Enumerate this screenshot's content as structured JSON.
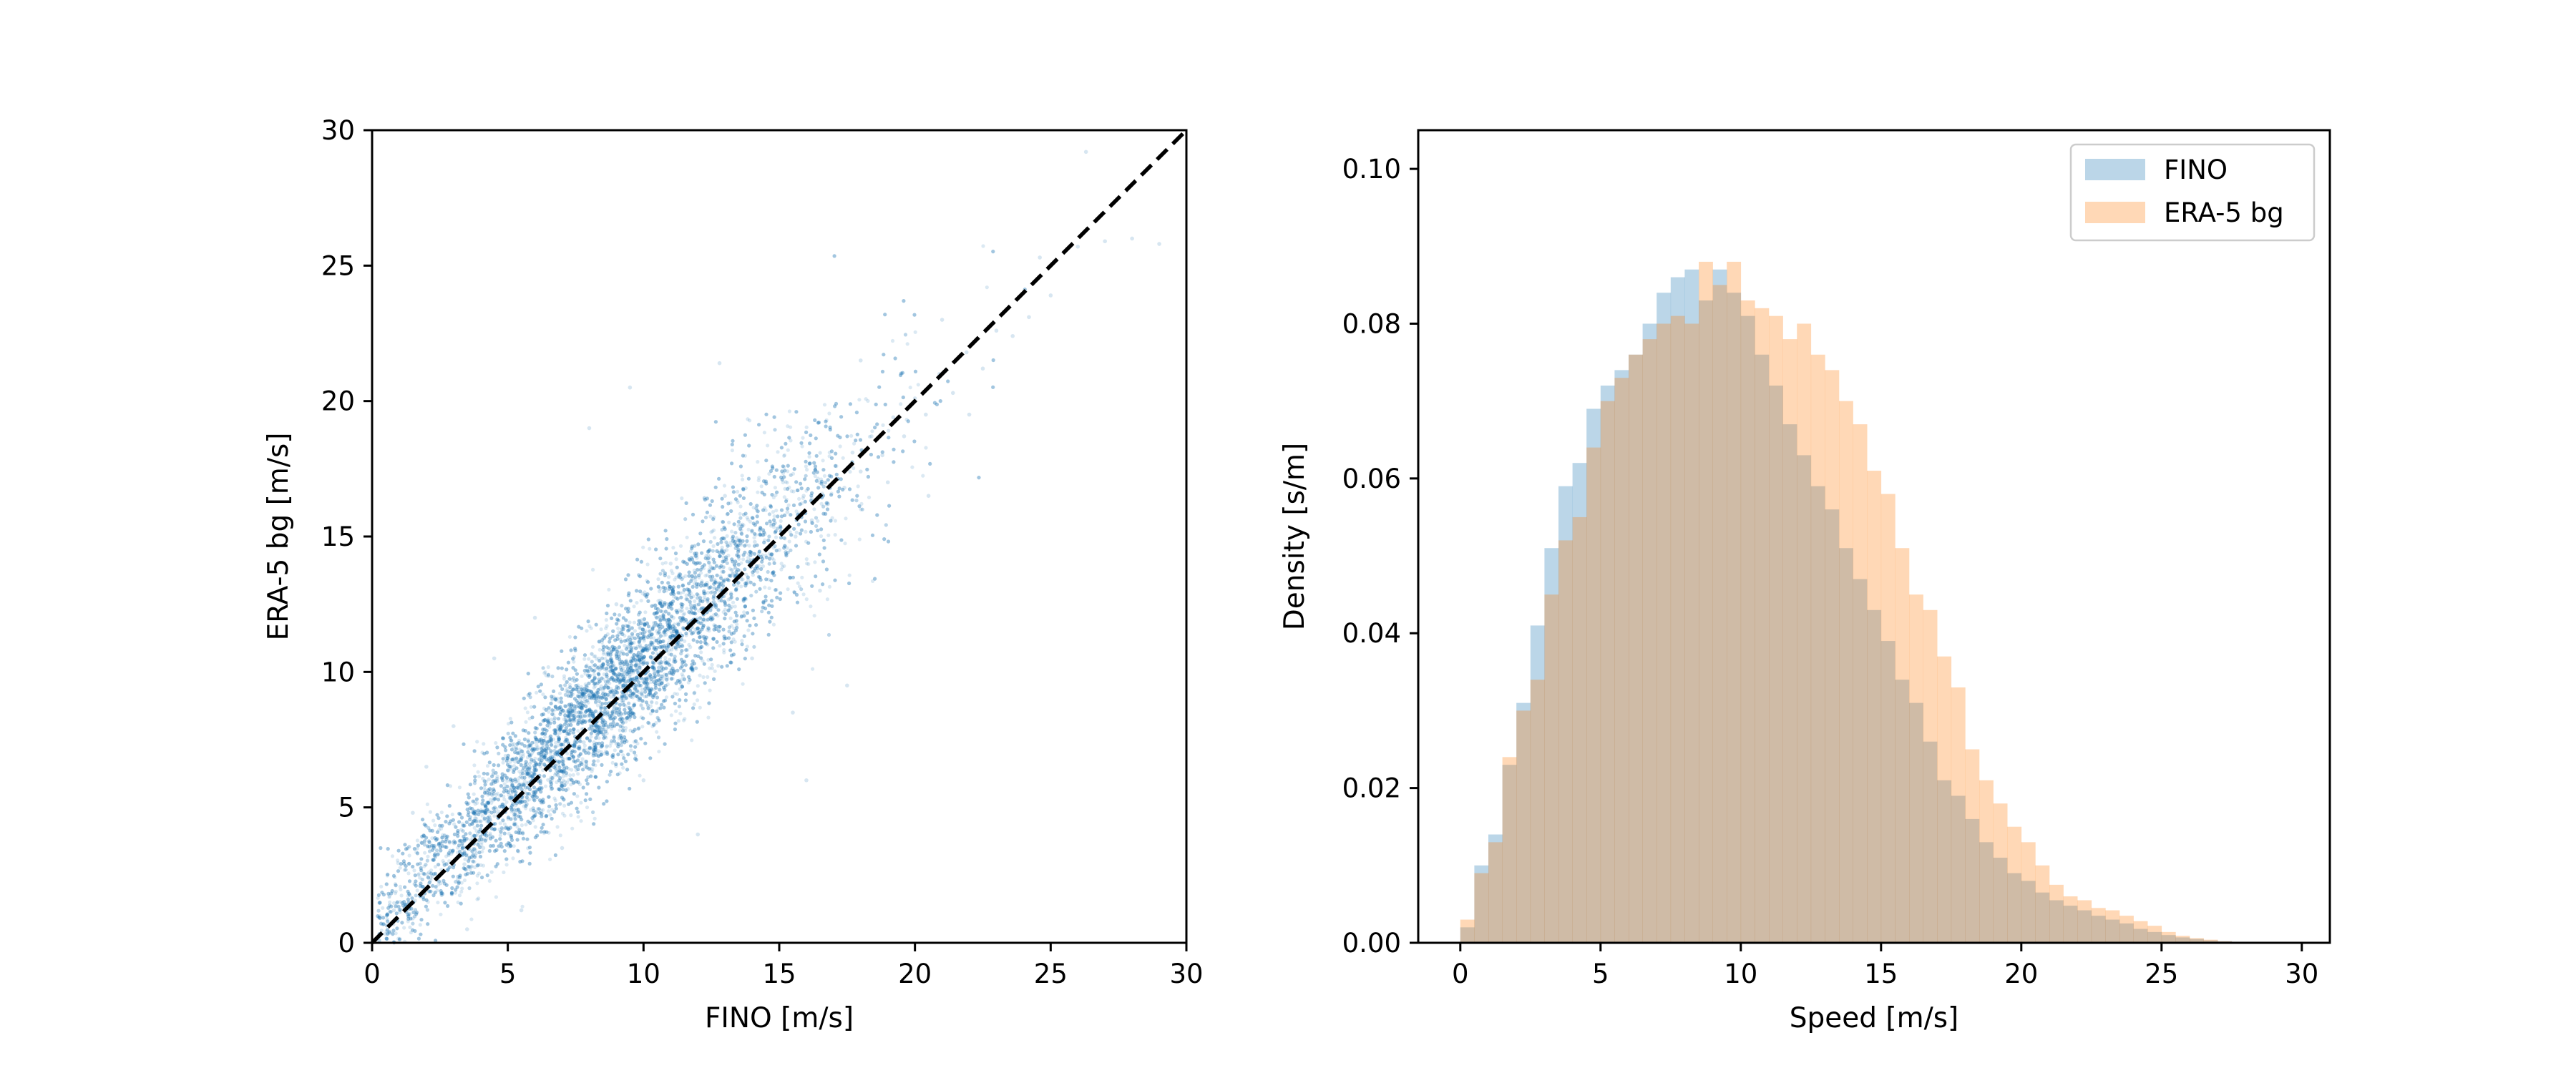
{
  "chart_data": [
    {
      "type": "scatter",
      "title": "",
      "xlabel": "FINO [m/s]",
      "ylabel": "ERA-5 bg [m/s]",
      "xlim": [
        0,
        30
      ],
      "ylim": [
        0,
        30
      ],
      "xticks": [
        0,
        5,
        10,
        15,
        20,
        25,
        30
      ],
      "yticks": [
        0,
        5,
        10,
        15,
        20,
        25,
        30
      ],
      "grid": false,
      "point_color": "#1f77b4",
      "point_alpha": 0.18,
      "reference_line": {
        "style": "dashed",
        "color": "#000000",
        "x": [
          0,
          30
        ],
        "y": [
          0,
          30
        ]
      },
      "points": [
        [
          0.8,
          1.2
        ],
        [
          1.5,
          0.9
        ],
        [
          2.1,
          2.6
        ],
        [
          2.6,
          1.8
        ],
        [
          3.0,
          3.7
        ],
        [
          3.4,
          2.9
        ],
        [
          3.8,
          4.6
        ],
        [
          4.1,
          3.5
        ],
        [
          4.5,
          5.3
        ],
        [
          4.8,
          4.2
        ],
        [
          5.1,
          6.0
        ],
        [
          5.4,
          4.9
        ],
        [
          5.7,
          6.6
        ],
        [
          6.0,
          5.5
        ],
        [
          6.3,
          7.2
        ],
        [
          6.6,
          6.1
        ],
        [
          6.9,
          7.9
        ],
        [
          7.2,
          6.8
        ],
        [
          7.5,
          8.5
        ],
        [
          7.8,
          7.4
        ],
        [
          8.1,
          9.1
        ],
        [
          8.4,
          8.0
        ],
        [
          8.7,
          9.7
        ],
        [
          9.0,
          8.6
        ],
        [
          9.3,
          10.3
        ],
        [
          9.6,
          9.2
        ],
        [
          9.9,
          10.9
        ],
        [
          10.2,
          9.8
        ],
        [
          10.5,
          11.5
        ],
        [
          10.8,
          10.4
        ],
        [
          11.1,
          12.0
        ],
        [
          11.4,
          11.0
        ],
        [
          11.7,
          12.6
        ],
        [
          12.0,
          11.6
        ],
        [
          12.3,
          13.2
        ],
        [
          12.6,
          12.1
        ],
        [
          12.9,
          13.7
        ],
        [
          13.2,
          12.7
        ],
        [
          13.5,
          14.3
        ],
        [
          13.8,
          13.3
        ],
        [
          14.1,
          14.8
        ],
        [
          14.4,
          13.9
        ],
        [
          14.7,
          15.4
        ],
        [
          15.0,
          14.5
        ],
        [
          15.3,
          15.9
        ],
        [
          15.6,
          15.0
        ],
        [
          15.9,
          16.5
        ],
        [
          16.2,
          15.6
        ],
        [
          16.5,
          17.0
        ],
        [
          16.8,
          16.2
        ],
        [
          17.1,
          17.6
        ],
        [
          17.4,
          16.8
        ],
        [
          17.7,
          18.1
        ],
        [
          18.0,
          17.4
        ],
        [
          18.4,
          18.7
        ],
        [
          18.8,
          18.0
        ],
        [
          19.2,
          19.4
        ],
        [
          19.6,
          18.7
        ],
        [
          20.0,
          20.1
        ],
        [
          20.4,
          19.5
        ],
        [
          20.9,
          21.0
        ],
        [
          21.4,
          20.3
        ],
        [
          21.9,
          21.8
        ],
        [
          22.5,
          21.2
        ],
        [
          23.0,
          22.6
        ],
        [
          23.6,
          22.4
        ],
        [
          24.2,
          23.1
        ],
        [
          25.0,
          23.9
        ],
        [
          26.0,
          25.7
        ],
        [
          27.0,
          25.9
        ],
        [
          28.0,
          26.0
        ],
        [
          29.0,
          25.8
        ],
        [
          26.3,
          29.2
        ],
        [
          24.6,
          25.3
        ],
        [
          8.0,
          19.0
        ],
        [
          9.5,
          20.5
        ],
        [
          12.8,
          21.4
        ],
        [
          16.0,
          6.0
        ],
        [
          15.5,
          8.5
        ],
        [
          12.0,
          4.0
        ],
        [
          2.0,
          6.5
        ],
        [
          3.0,
          8.0
        ],
        [
          4.5,
          10.5
        ],
        [
          6.0,
          12.0
        ],
        [
          1.5,
          4.8
        ],
        [
          3.5,
          0.5
        ],
        [
          7.0,
          3.5
        ],
        [
          5.5,
          1.2
        ],
        [
          10.0,
          6.0
        ],
        [
          17.5,
          9.5
        ],
        [
          19.0,
          17.0
        ],
        [
          21.0,
          23.0
        ],
        [
          22.0,
          19.5
        ],
        [
          18.0,
          21.5
        ],
        [
          13.0,
          16.5
        ],
        [
          11.0,
          14.0
        ],
        [
          9.0,
          12.5
        ],
        [
          14.0,
          10.5
        ],
        [
          16.5,
          13.0
        ],
        [
          20.5,
          16.5
        ]
      ]
    },
    {
      "type": "histogram",
      "title": "",
      "xlabel": "Speed [m/s]",
      "ylabel": "Density [s/m]",
      "xlim": [
        -1.5,
        31
      ],
      "ylim": [
        0,
        0.105
      ],
      "xticks": [
        0,
        5,
        10,
        15,
        20,
        25,
        30
      ],
      "yticks": [
        0.0,
        0.02,
        0.04,
        0.06,
        0.08,
        0.1
      ],
      "ytick_labels": [
        "0.00",
        "0.02",
        "0.04",
        "0.06",
        "0.08",
        "0.10"
      ],
      "grid": false,
      "legend_position": "top-right",
      "bin_width": 0.5,
      "bin_start": 0,
      "series": [
        {
          "name": "FINO",
          "color": "#1f77b4",
          "alpha": 0.3,
          "values": [
            0.002,
            0.01,
            0.014,
            0.023,
            0.031,
            0.041,
            0.051,
            0.059,
            0.062,
            0.069,
            0.072,
            0.074,
            0.076,
            0.08,
            0.084,
            0.086,
            0.087,
            0.083,
            0.087,
            0.084,
            0.081,
            0.076,
            0.072,
            0.067,
            0.063,
            0.059,
            0.056,
            0.051,
            0.047,
            0.043,
            0.039,
            0.034,
            0.031,
            0.026,
            0.021,
            0.019,
            0.016,
            0.013,
            0.011,
            0.009,
            0.008,
            0.0065,
            0.0055,
            0.0048,
            0.0042,
            0.0035,
            0.003,
            0.0025,
            0.0018,
            0.0014,
            0.001,
            0.0007,
            0.0005,
            0.0003,
            0.0002,
            0.0001,
            0.0001,
            0.0001,
            0.0,
            0.0
          ]
        },
        {
          "name": "ERA-5 bg",
          "color": "#ff7f0e",
          "alpha": 0.3,
          "values": [
            0.003,
            0.009,
            0.013,
            0.024,
            0.03,
            0.034,
            0.045,
            0.052,
            0.055,
            0.064,
            0.07,
            0.073,
            0.076,
            0.078,
            0.08,
            0.081,
            0.08,
            0.088,
            0.085,
            0.088,
            0.083,
            0.082,
            0.081,
            0.078,
            0.08,
            0.076,
            0.074,
            0.07,
            0.067,
            0.061,
            0.058,
            0.051,
            0.045,
            0.043,
            0.037,
            0.033,
            0.025,
            0.021,
            0.018,
            0.015,
            0.013,
            0.01,
            0.0075,
            0.006,
            0.0055,
            0.0045,
            0.0042,
            0.0035,
            0.0028,
            0.0022,
            0.0014,
            0.0009,
            0.0006,
            0.0004,
            0.0002,
            0.0001,
            0.0001,
            0.0,
            0.0,
            0.0
          ]
        }
      ]
    }
  ]
}
